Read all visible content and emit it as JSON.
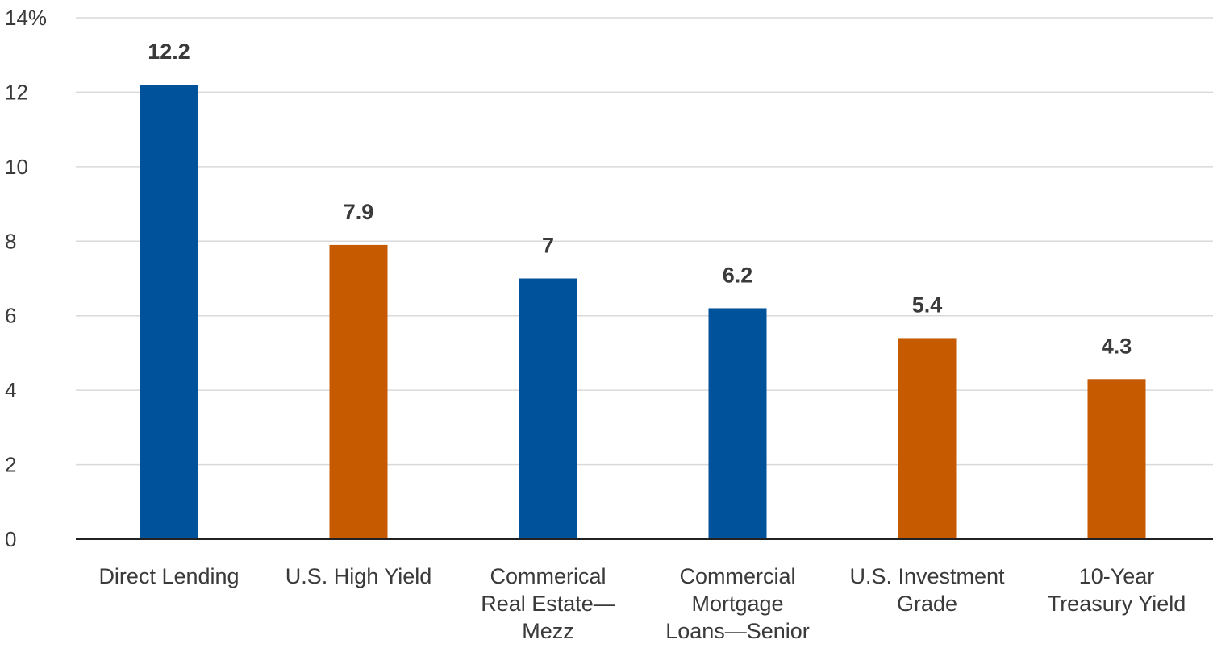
{
  "chart_data": {
    "type": "bar",
    "title": "",
    "xlabel": "",
    "ylabel": "",
    "y_unit_suffix": "%",
    "ylim": [
      0,
      14
    ],
    "y_ticks": [
      0,
      2,
      4,
      6,
      8,
      10,
      12,
      14
    ],
    "y_tick_labels": [
      "0",
      "2",
      "4",
      "6",
      "8",
      "10",
      "12",
      "14%"
    ],
    "grid": true,
    "categories": [
      [
        "Direct Lending"
      ],
      [
        "U.S. High Yield"
      ],
      [
        "Commerical",
        "Real Estate—",
        "Mezz"
      ],
      [
        "Commercial",
        "Mortgage",
        "Loans—Senior"
      ],
      [
        "U.S. Investment",
        "Grade"
      ],
      [
        "10-Year",
        "Treasury Yield"
      ]
    ],
    "values": [
      12.2,
      7.9,
      7,
      6.2,
      5.4,
      4.3
    ],
    "value_labels": [
      "12.2",
      "7.9",
      "7",
      "6.2",
      "5.4",
      "4.3"
    ],
    "bar_colors": [
      "#00529b",
      "#c55a00",
      "#00529b",
      "#00529b",
      "#c55a00",
      "#c55a00"
    ]
  }
}
